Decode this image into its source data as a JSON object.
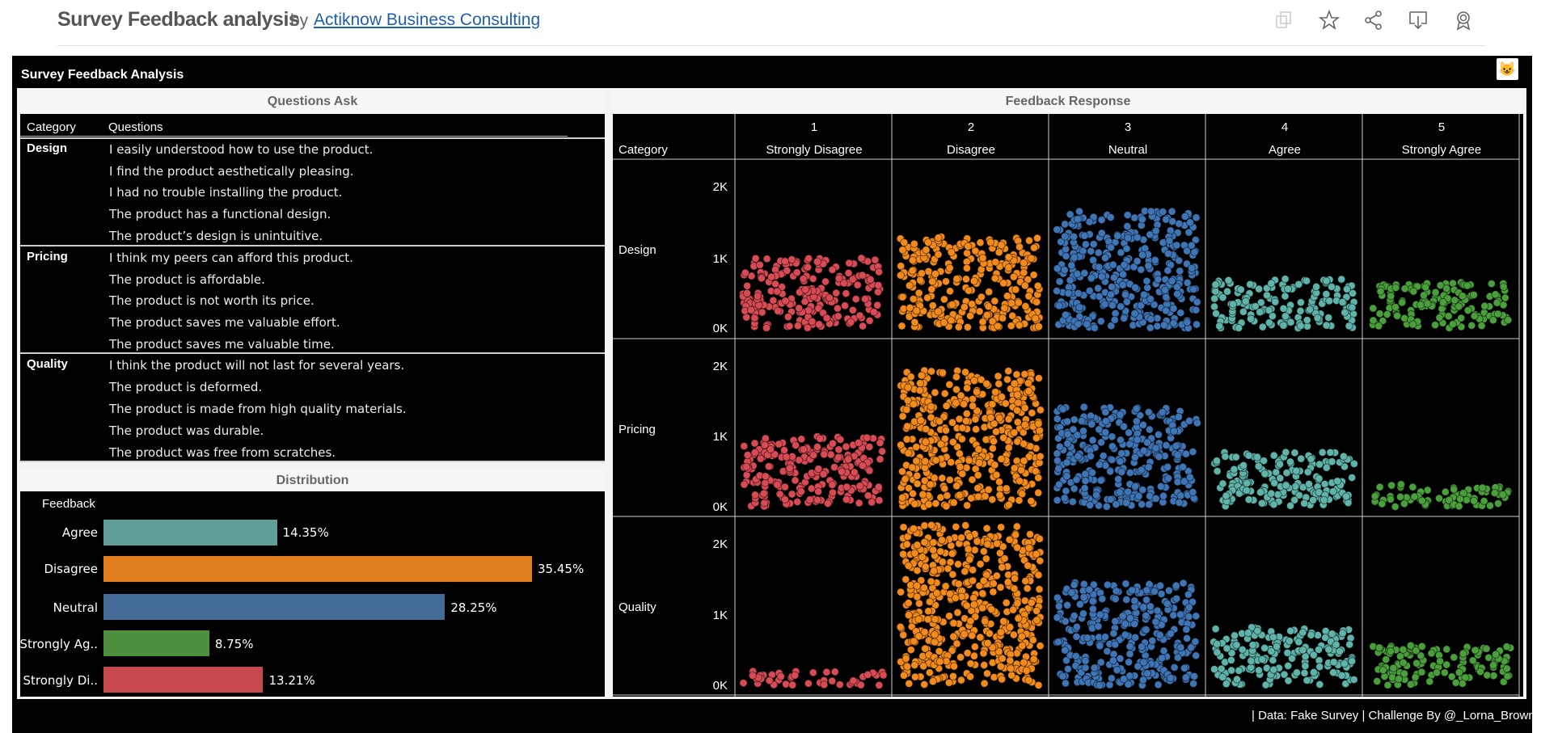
{
  "header": {
    "title": "Survey Feedback analysis",
    "by": "by",
    "author": "Actiknow Business Consulting",
    "icons": [
      "copy-icon",
      "star-icon",
      "share-icon",
      "download-icon",
      "badge-icon"
    ]
  },
  "dashboard": {
    "title": "Survey Feedback Analysis",
    "emoji": "😺",
    "footer": "| Data: Fake Survey | Challenge By @_Lorna_Brown"
  },
  "questions_panel": {
    "title": "Questions Ask",
    "col_category": "Category",
    "col_questions": "Questions",
    "groups": [
      {
        "category": "Design",
        "questions": [
          "I easily understood how to use the product.",
          "I find the product aesthetically pleasing.",
          "I had no trouble installing the product.",
          "The product has a functional design.",
          "The product’s design is unintuitive."
        ]
      },
      {
        "category": "Pricing",
        "questions": [
          "I think my peers can afford this product.",
          "The product is affordable.",
          "The product is not worth its price.",
          "The product saves me valuable effort.",
          "The product saves me valuable time."
        ]
      },
      {
        "category": "Quality",
        "questions": [
          "I think the product will not last for several years.",
          "The product is deformed.",
          "The product is made from high quality materials.",
          "The product was durable.",
          "The product was free from scratches."
        ]
      }
    ]
  },
  "chart_data": [
    {
      "type": "bar",
      "orientation": "horizontal",
      "title": "Distribution",
      "ylabel": "Feedback",
      "categories": [
        "Agree",
        "Disagree",
        "Neutral",
        "Strongly Ag..",
        "Strongly Di.."
      ],
      "values": [
        14.35,
        35.45,
        28.25,
        8.75,
        13.21
      ],
      "value_labels": [
        "14.35%",
        "35.45%",
        "28.25%",
        "8.75%",
        "13.21%"
      ],
      "colors": [
        "#5f9e97",
        "#e07e1f",
        "#436c99",
        "#4d8f3d",
        "#c6474d"
      ],
      "xlim": [
        0,
        40
      ]
    },
    {
      "type": "scatter",
      "title": "Feedback Response",
      "row_header": "Category",
      "columns": [
        {
          "number": "1",
          "label": "Strongly Disagree",
          "color": "#d84b55"
        },
        {
          "number": "2",
          "label": "Disagree",
          "color": "#f28a1c"
        },
        {
          "number": "3",
          "label": "Neutral",
          "color": "#3f74b5"
        },
        {
          "number": "4",
          "label": "Agree",
          "color": "#5fb3a9"
        },
        {
          "number": "5",
          "label": "Strongly Agree",
          "color": "#4a9e3c"
        }
      ],
      "rows": [
        "Design",
        "Pricing",
        "Quality"
      ],
      "y_ticks": [
        "2K",
        "1K",
        "0K"
      ],
      "ylim": [
        0,
        2200
      ],
      "counts": [
        [
          1000,
          1300,
          1680,
          700,
          650
        ],
        [
          1000,
          1940,
          1420,
          780,
          320
        ],
        [
          200,
          2280,
          1460,
          830,
          580
        ]
      ]
    }
  ]
}
